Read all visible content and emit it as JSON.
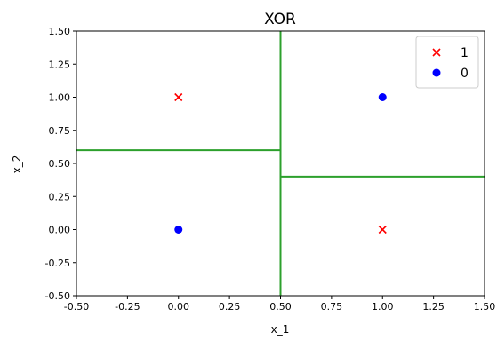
{
  "chart_data": {
    "type": "scatter",
    "title": "XOR",
    "xlabel": "x_1",
    "ylabel": "x_2",
    "xlim": [
      -0.5,
      1.5
    ],
    "ylim": [
      -0.5,
      1.5
    ],
    "x_ticks": [
      -0.5,
      -0.25,
      0.0,
      0.25,
      0.5,
      0.75,
      1.0,
      1.25,
      1.5
    ],
    "y_ticks": [
      -0.5,
      -0.25,
      0.0,
      0.25,
      0.5,
      0.75,
      1.0,
      1.25,
      1.5
    ],
    "x_tick_labels": [
      "-0.50",
      "-0.25",
      "0.00",
      "0.25",
      "0.50",
      "0.75",
      "1.00",
      "1.25",
      "1.50"
    ],
    "y_tick_labels": [
      "-0.50",
      "-0.25",
      "0.00",
      "0.25",
      "0.50",
      "0.75",
      "1.00",
      "1.25",
      "1.50"
    ],
    "grid": false,
    "legend_position": "top-right",
    "series": [
      {
        "name": "1",
        "marker": "x",
        "color": "#ff0000",
        "points": [
          {
            "x": 0.0,
            "y": 1.0
          },
          {
            "x": 1.0,
            "y": 0.0
          }
        ]
      },
      {
        "name": "0",
        "marker": "circle",
        "color": "#0000ff",
        "points": [
          {
            "x": 1.0,
            "y": 1.0
          },
          {
            "x": 0.0,
            "y": 0.0
          }
        ]
      }
    ],
    "decision_boundaries": {
      "color": "#2ca02c",
      "lines": [
        {
          "orientation": "vertical",
          "x": 0.5,
          "y_range": [
            -0.5,
            1.5
          ]
        },
        {
          "orientation": "horizontal",
          "y": 0.6,
          "x_range": [
            -0.5,
            0.5
          ]
        },
        {
          "orientation": "horizontal",
          "y": 0.4,
          "x_range": [
            0.5,
            1.5
          ]
        }
      ]
    }
  }
}
